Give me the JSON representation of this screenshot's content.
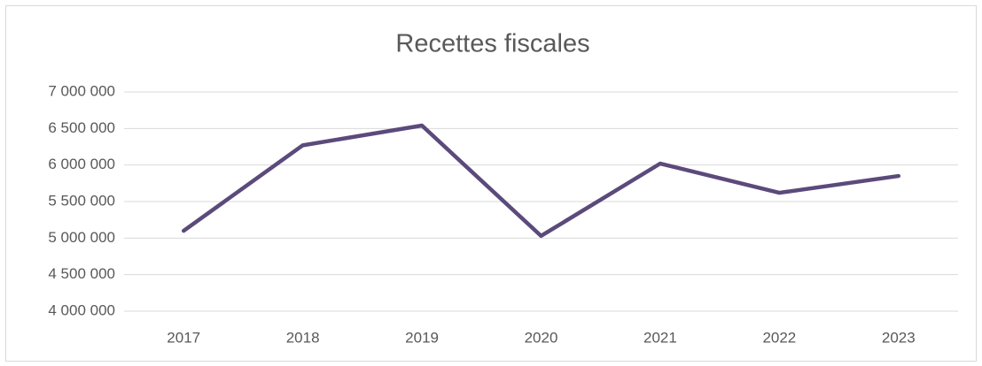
{
  "chart_data": {
    "type": "line",
    "title": "Recettes fiscales",
    "categories": [
      "2017",
      "2018",
      "2019",
      "2020",
      "2021",
      "2022",
      "2023"
    ],
    "series": [
      {
        "name": "Recettes fiscales",
        "color": "#5b4a7b",
        "values": [
          5100000,
          6270000,
          6540000,
          5030000,
          6020000,
          5620000,
          5850000
        ]
      }
    ],
    "ylim": [
      4000000,
      7000000
    ],
    "yticks": [
      {
        "value": 4000000,
        "label": "4 000 000"
      },
      {
        "value": 4500000,
        "label": "4 500 000"
      },
      {
        "value": 5000000,
        "label": "5 000 000"
      },
      {
        "value": 5500000,
        "label": "5 500 000"
      },
      {
        "value": 6000000,
        "label": "6 000 000"
      },
      {
        "value": 6500000,
        "label": "6 500 000"
      },
      {
        "value": 7000000,
        "label": "7 000 000"
      }
    ],
    "grid": true
  }
}
